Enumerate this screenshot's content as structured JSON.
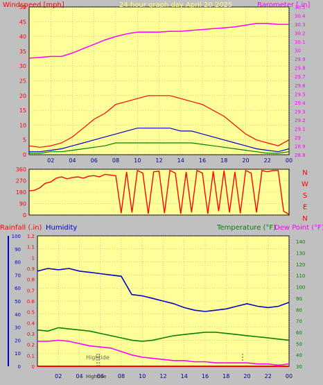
{
  "colors": {
    "background": "#c0c0c0",
    "plot_bg": "#ffff99",
    "title": "#ffff66",
    "red": "#ff0000",
    "blue": "#0000cc",
    "green": "#008000",
    "magenta": "#ff00ff",
    "grid": "#888888"
  },
  "header": {
    "title": "24 hour graph day April 20 2025",
    "left_label": "Windspeed [mph]",
    "right_label": "Barometer [.in]"
  },
  "middle": {
    "compass": [
      "N",
      "W",
      "S",
      "E",
      "N"
    ]
  },
  "bottom": {
    "rain_label": "Rainfall (.in)",
    "humidity_label": "Humidity",
    "temp_label": "Temperature (°F)",
    "dew_label": "Dew Point (°F)",
    "hightide_top": "Hightide",
    "hightide_axis": "Hightide"
  },
  "chart_data": [
    {
      "type": "line",
      "name": "wind-barometer",
      "xlabel": "",
      "x_ticks": [
        "02",
        "04",
        "06",
        "08",
        "10",
        "12",
        "14",
        "16",
        "18",
        "20",
        "22",
        "00"
      ],
      "y_left": {
        "label": "Windspeed [mph]",
        "ticks": [
          0,
          5,
          10,
          15,
          20,
          25,
          30,
          35,
          40,
          45,
          50
        ],
        "range": [
          0,
          50
        ]
      },
      "y_right": {
        "label": "Barometer [.in]",
        "ticks": [
          "28.8",
          "28.9",
          "29",
          "29.1",
          "29.2",
          "29.3",
          "29.4",
          "29.5",
          "29.6",
          "29.7",
          "29.8",
          "29.9",
          "30",
          "30.1",
          "30.2",
          "30.3",
          "30.4",
          "30.5"
        ],
        "range": [
          28.8,
          30.5
        ]
      },
      "series": [
        {
          "name": "Gust",
          "color": "#ff0000",
          "x": [
            0,
            1,
            2,
            3,
            4,
            5,
            6,
            7,
            8,
            9,
            10,
            11,
            12,
            13,
            14,
            15,
            16,
            17,
            18,
            19,
            20,
            21,
            22,
            23,
            24
          ],
          "y": [
            3,
            2.5,
            3,
            4,
            6,
            9,
            12,
            14,
            17,
            18,
            19,
            20,
            20,
            20,
            19,
            18,
            17,
            15,
            13,
            10,
            7,
            5,
            4,
            3,
            5
          ]
        },
        {
          "name": "Average",
          "color": "#0000cc",
          "x": [
            0,
            1,
            2,
            3,
            4,
            5,
            6,
            7,
            8,
            9,
            10,
            11,
            12,
            13,
            14,
            15,
            16,
            17,
            18,
            19,
            20,
            21,
            22,
            23,
            24
          ],
          "y": [
            1,
            1,
            1.5,
            2,
            3,
            4,
            5,
            6,
            7,
            8,
            9,
            9,
            9,
            9,
            8,
            8,
            7,
            6,
            5,
            4,
            3,
            2,
            1.5,
            1,
            2
          ]
        },
        {
          "name": "Wind",
          "color": "#008000",
          "x": [
            0,
            1,
            2,
            3,
            4,
            5,
            6,
            7,
            8,
            9,
            10,
            11,
            12,
            13,
            14,
            15,
            16,
            17,
            18,
            19,
            20,
            21,
            22,
            23,
            24
          ],
          "y": [
            0.5,
            0.5,
            1,
            1,
            1.5,
            2,
            2.5,
            3,
            4,
            4,
            4,
            4,
            4,
            4,
            4,
            4,
            3.5,
            3,
            2.5,
            2,
            1.5,
            1,
            0.5,
            0.5,
            1
          ]
        },
        {
          "name": "Barometer",
          "color": "#ff00ff",
          "axis": "right",
          "x": [
            0,
            1,
            2,
            3,
            4,
            5,
            6,
            7,
            8,
            9,
            10,
            11,
            12,
            13,
            14,
            15,
            16,
            17,
            18,
            19,
            20,
            21,
            22,
            23,
            24
          ],
          "y": [
            29.91,
            29.92,
            29.93,
            29.93,
            29.97,
            30.02,
            30.07,
            30.12,
            30.16,
            30.19,
            30.21,
            30.21,
            30.21,
            30.22,
            30.22,
            30.23,
            30.24,
            30.25,
            30.26,
            30.27,
            30.29,
            30.31,
            30.31,
            30.3,
            30.3
          ]
        }
      ]
    },
    {
      "type": "line",
      "name": "wind-direction",
      "y_ticks": [
        0,
        90,
        180,
        270,
        360
      ],
      "range": [
        0,
        360
      ],
      "series": [
        {
          "name": "Wind Direction",
          "color": "#ff0000",
          "x": [
            0,
            0.5,
            1,
            1.5,
            2,
            2.5,
            3,
            3.5,
            4,
            4.5,
            5,
            5.5,
            6,
            6.5,
            7,
            7.5,
            8,
            8.5,
            9,
            9.5,
            10,
            10.5,
            11,
            11.5,
            12,
            12.5,
            13,
            13.5,
            14,
            14.5,
            15,
            15.5,
            16,
            16.5,
            17,
            17.5,
            18,
            18.5,
            19,
            19.5,
            20,
            20.5,
            21,
            21.5,
            22,
            22.5,
            23,
            23.5,
            24
          ],
          "y": [
            190,
            195,
            215,
            250,
            260,
            290,
            300,
            285,
            295,
            300,
            290,
            305,
            310,
            300,
            320,
            315,
            310,
            15,
            340,
            20,
            350,
            330,
            10,
            340,
            345,
            15,
            350,
            330,
            10,
            340,
            20,
            350,
            330,
            10,
            345,
            30,
            350,
            20,
            340,
            15,
            350,
            330,
            20,
            350,
            340,
            350,
            350,
            30,
            5
          ]
        }
      ]
    },
    {
      "type": "line",
      "name": "humidity-temp-dew",
      "x_ticks": [
        "02",
        "04",
        "06",
        "08",
        "10",
        "12",
        "14",
        "16",
        "18",
        "20",
        "22",
        "00"
      ],
      "y_left_humidity": {
        "label": "Humidity",
        "ticks": [
          0,
          10,
          20,
          30,
          40,
          50,
          60,
          70,
          80,
          90,
          100
        ],
        "range": [
          0,
          100
        ]
      },
      "y_left_rain": {
        "label": "Rainfall (.in)",
        "ticks": [
          "0",
          "0.1",
          "0.2",
          "0.3",
          "0.4",
          "0.5",
          "0.6",
          "0.7",
          "0.8",
          "0.9",
          "1",
          "1.1",
          "1.2"
        ],
        "range": [
          0,
          1.2
        ]
      },
      "y_right": {
        "label": "Temperature (°F)",
        "ticks": [
          30,
          40,
          50,
          60,
          70,
          80,
          90,
          100,
          110,
          120,
          130,
          140
        ],
        "range": [
          30,
          145
        ]
      },
      "series": [
        {
          "name": "Humidity",
          "color": "#0000cc",
          "axis": "humidity",
          "x": [
            0,
            1,
            2,
            3,
            4,
            5,
            6,
            7,
            8,
            9,
            10,
            11,
            12,
            13,
            14,
            15,
            16,
            17,
            18,
            19,
            20,
            21,
            22,
            23,
            24
          ],
          "y": [
            73,
            75,
            74,
            75,
            73,
            72,
            71,
            70,
            69,
            55,
            54,
            52,
            50,
            48,
            45,
            43,
            42,
            43,
            44,
            46,
            48,
            46,
            45,
            46,
            49
          ]
        },
        {
          "name": "Temperature",
          "color": "#008000",
          "axis": "temp",
          "x": [
            0,
            1,
            2,
            3,
            4,
            5,
            6,
            7,
            8,
            9,
            10,
            11,
            12,
            13,
            14,
            15,
            16,
            17,
            18,
            19,
            20,
            21,
            22,
            23,
            24
          ],
          "y": [
            62,
            61,
            64,
            63,
            62,
            61,
            59,
            57,
            55,
            53,
            52,
            53,
            55,
            57,
            58,
            59,
            60,
            60,
            59,
            58,
            57,
            56,
            55,
            54,
            53
          ]
        },
        {
          "name": "Dew Point",
          "color": "#ff00ff",
          "axis": "temp",
          "x": [
            0,
            1,
            2,
            3,
            4,
            5,
            6,
            7,
            8,
            9,
            10,
            11,
            12,
            13,
            14,
            15,
            16,
            17,
            18,
            19,
            20,
            21,
            22,
            23,
            24
          ],
          "y": [
            52,
            52,
            53,
            52,
            50,
            48,
            47,
            46,
            43,
            40,
            38,
            37,
            36,
            35,
            35,
            34,
            34,
            33,
            33,
            33,
            33,
            32,
            32,
            31,
            32
          ]
        },
        {
          "name": "Rainfall",
          "color": "#ff0000",
          "axis": "rain",
          "x": [
            0,
            24
          ],
          "y": [
            0,
            0
          ]
        }
      ]
    }
  ]
}
